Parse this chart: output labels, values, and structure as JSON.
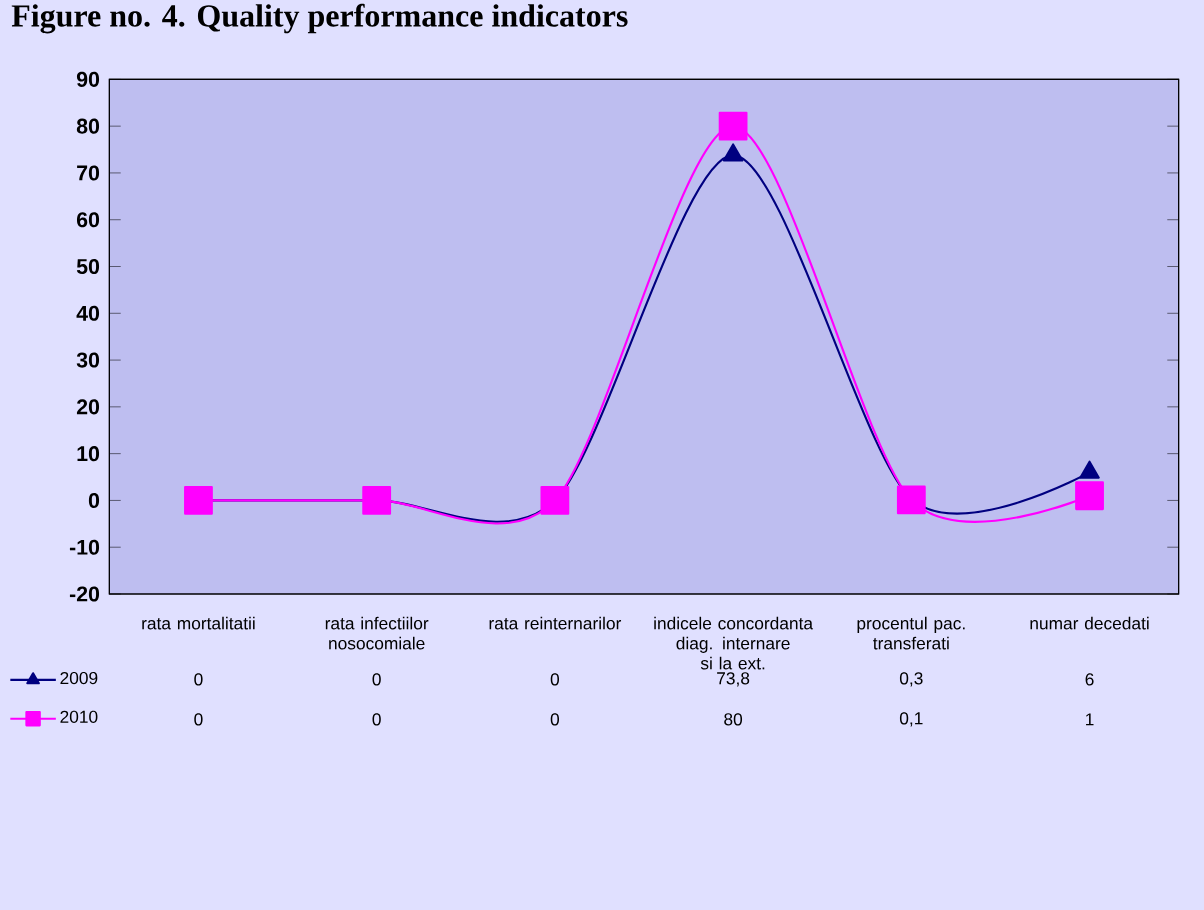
{
  "chart_data": {
    "type": "line",
    "title": "Figure no. 4. Quality performance indicators",
    "categories": [
      "rata mortalitatii",
      "rata infectiilor nosocomiale",
      "rata reinternarilor",
      "indicele concordanta diag. internare si la ext.",
      "procentul pac. transferati",
      "numar decedati"
    ],
    "series": [
      {
        "name": "2009",
        "color": "#000080",
        "marker": "triangle",
        "values": [
          0,
          0,
          0,
          73.8,
          0.3,
          6
        ],
        "value_labels": [
          "0",
          "0",
          "0",
          "73,8",
          "0,3",
          "6"
        ]
      },
      {
        "name": "2010",
        "color": "#ff00ff",
        "marker": "square",
        "values": [
          0,
          0,
          0,
          80,
          0.1,
          1
        ],
        "value_labels": [
          "0",
          "0",
          "0",
          "80",
          "0,1",
          "1"
        ]
      }
    ],
    "ylim": [
      -20,
      90
    ],
    "yticks": [
      -20,
      -10,
      0,
      10,
      20,
      30,
      40,
      50,
      60,
      70,
      80,
      90
    ],
    "grid": false,
    "legend": "bottom left",
    "line_style": "solid"
  }
}
